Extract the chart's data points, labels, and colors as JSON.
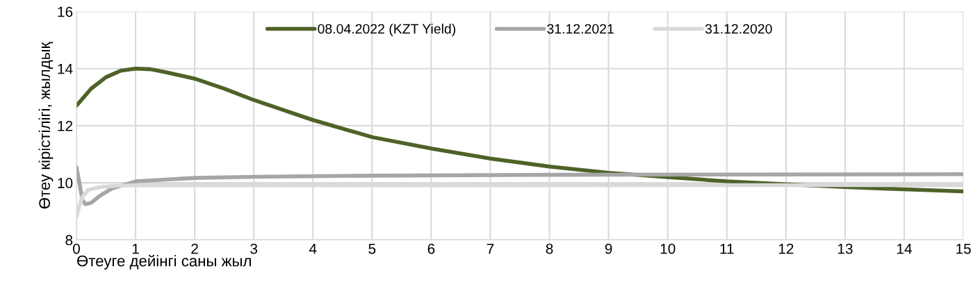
{
  "chart_data": {
    "type": "line",
    "xlabel": "Өтеуге дейінгі саны жыл",
    "ylabel": "Өтеу кірістілігі, жылдық",
    "xlim": [
      0,
      15
    ],
    "xticks": [
      0,
      1,
      2,
      3,
      4,
      5,
      6,
      7,
      8,
      9,
      10,
      11,
      12,
      13,
      14,
      15
    ],
    "ylim": [
      8,
      16
    ],
    "yticks": [
      8,
      10,
      12,
      14,
      16
    ],
    "grid": true,
    "legend": "top",
    "marker": "none",
    "line_style": "solid",
    "series": [
      {
        "name": "08.04.2022 (KZT Yield)",
        "color": "#4f6228",
        "x": [
          0,
          0.25,
          0.5,
          0.75,
          1,
          1.25,
          1.5,
          2,
          2.5,
          3,
          3.5,
          4,
          5,
          6,
          7,
          8,
          9,
          10,
          11,
          12,
          13,
          14,
          15
        ],
        "values": [
          12.7,
          13.3,
          13.7,
          13.93,
          14.0,
          13.98,
          13.88,
          13.65,
          13.3,
          12.9,
          12.55,
          12.2,
          11.6,
          11.2,
          10.85,
          10.57,
          10.35,
          10.2,
          10.05,
          9.95,
          9.85,
          9.77,
          9.7
        ]
      },
      {
        "name": "31.12.2021",
        "color": "#a6a6a6",
        "x": [
          0,
          0.05,
          0.1,
          0.15,
          0.25,
          0.4,
          0.6,
          1,
          2,
          3,
          5,
          8,
          15
        ],
        "values": [
          10.55,
          10.0,
          9.4,
          9.25,
          9.3,
          9.55,
          9.8,
          10.05,
          10.17,
          10.21,
          10.25,
          10.28,
          10.3
        ]
      },
      {
        "name": "31.12.2020",
        "color": "#d9d9d9",
        "x": [
          0,
          0.05,
          0.1,
          0.2,
          0.4,
          0.7,
          1,
          15
        ],
        "values": [
          8.8,
          9.2,
          9.5,
          9.75,
          9.85,
          9.9,
          9.91,
          9.92
        ]
      }
    ]
  }
}
